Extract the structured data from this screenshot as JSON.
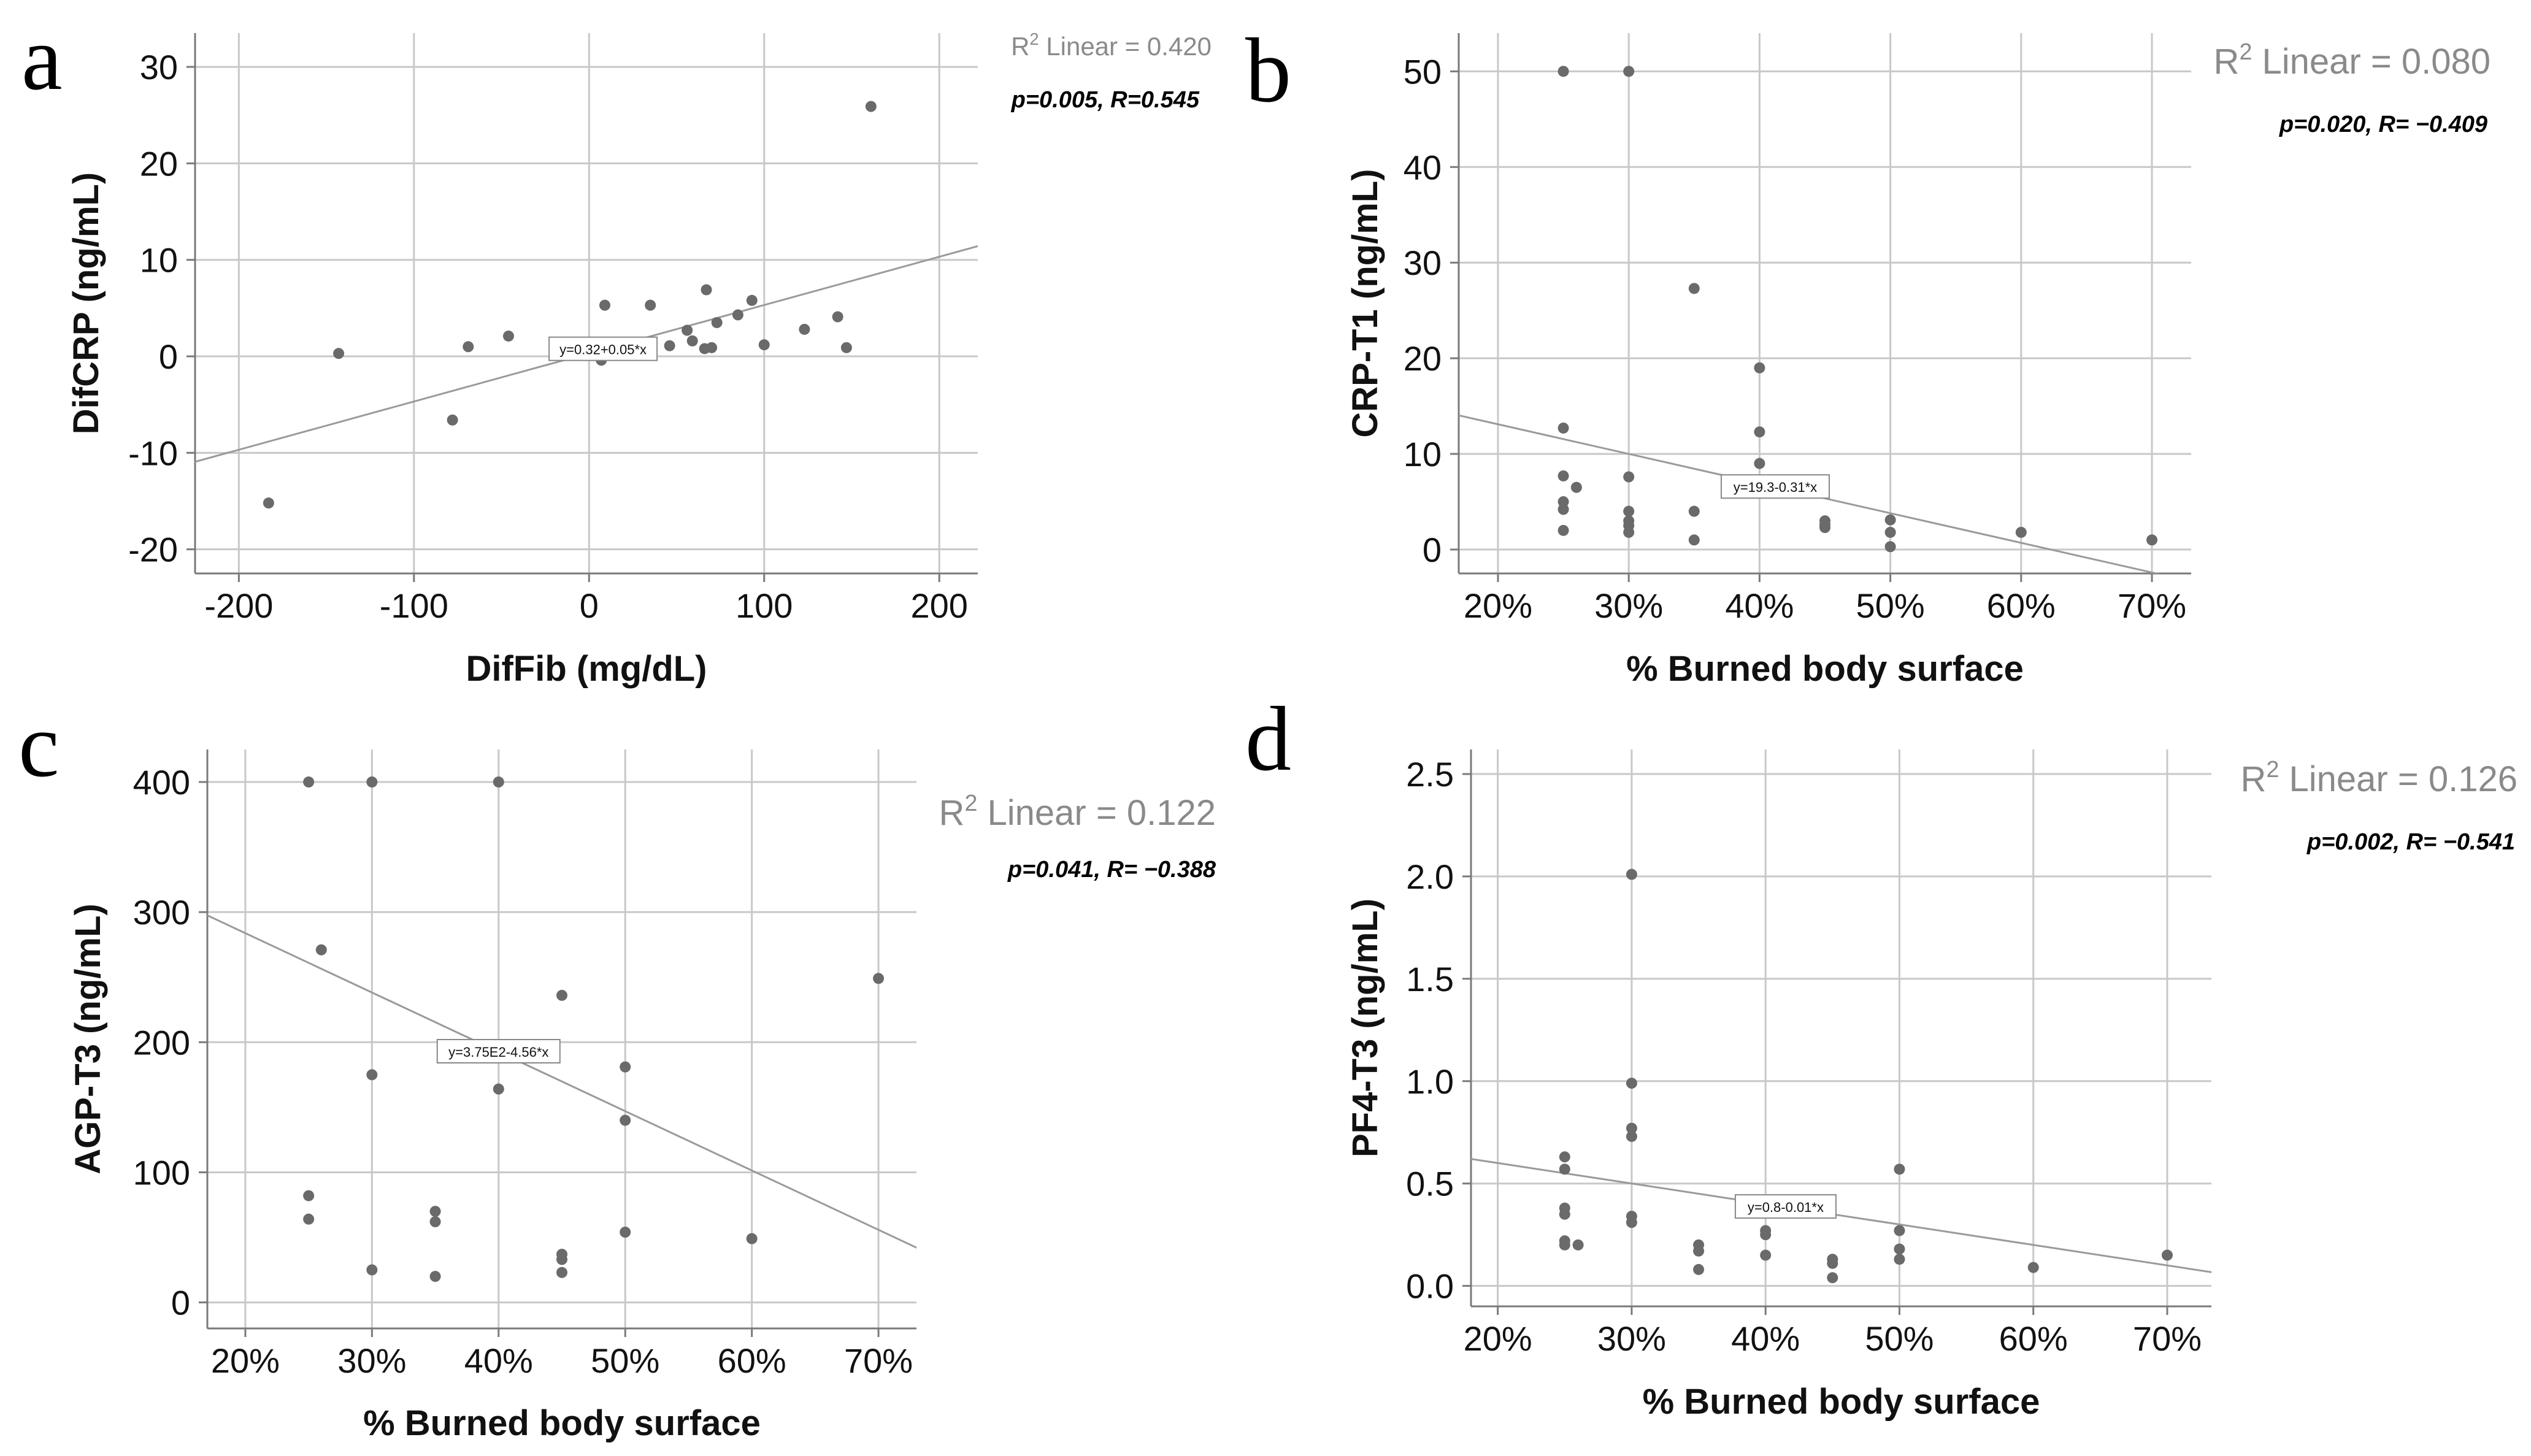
{
  "chart_data": [
    {
      "panel_letter": "a",
      "type": "scatter",
      "xlabel": "DifFib (mg/dL)",
      "ylabel": "DifCRP (ng/mL)",
      "xlim": [
        -225,
        222
      ],
      "ylim": [
        -22.5,
        33.5
      ],
      "x_ticks": [
        -200,
        -100,
        0,
        100,
        200
      ],
      "x_tick_labels": [
        "-200",
        "-100",
        "0",
        "100",
        "200"
      ],
      "y_ticks": [
        -20,
        -10,
        0,
        10,
        20,
        30
      ],
      "y_tick_labels": [
        "-20",
        "-10",
        "0",
        "10",
        "20",
        "30"
      ],
      "grid": true,
      "points": [
        {
          "x": -183,
          "y": -15.2
        },
        {
          "x": -143,
          "y": 0.3
        },
        {
          "x": -78,
          "y": -6.6
        },
        {
          "x": -69,
          "y": 1.0
        },
        {
          "x": -46,
          "y": 2.1
        },
        {
          "x": 7,
          "y": -0.4
        },
        {
          "x": 9,
          "y": 5.3
        },
        {
          "x": 35,
          "y": 5.3
        },
        {
          "x": 46,
          "y": 1.1
        },
        {
          "x": 56,
          "y": 2.7
        },
        {
          "x": 59,
          "y": 1.6
        },
        {
          "x": 67,
          "y": 6.9
        },
        {
          "x": 66,
          "y": 0.8
        },
        {
          "x": 70,
          "y": 0.9
        },
        {
          "x": 73,
          "y": 3.5
        },
        {
          "x": 85,
          "y": 4.3
        },
        {
          "x": 93,
          "y": 5.8
        },
        {
          "x": 100,
          "y": 1.2
        },
        {
          "x": 123,
          "y": 2.8
        },
        {
          "x": 142,
          "y": 4.1
        },
        {
          "x": 147,
          "y": 0.9
        },
        {
          "x": 161,
          "y": 25.9
        }
      ],
      "fit": {
        "intercept": 0.32,
        "slope": 0.05,
        "label": "y=0.32+0.05*x",
        "label_x": 8
      },
      "r2_text": "Linear = 0.420",
      "r2_size": "small",
      "stats_text": "p=0.005, R=0.545"
    },
    {
      "panel_letter": "b",
      "type": "scatter",
      "xlabel": "% Burned body surface",
      "ylabel": "CRP-T1 (ng/mL)",
      "xlim": [
        17,
        73
      ],
      "ylim": [
        -2.5,
        54
      ],
      "x_ticks": [
        20,
        30,
        40,
        50,
        60,
        70
      ],
      "x_tick_labels": [
        "20%",
        "30%",
        "40%",
        "50%",
        "60%",
        "70%"
      ],
      "y_ticks": [
        0,
        10,
        20,
        30,
        40,
        50
      ],
      "y_tick_labels": [
        "0",
        "10",
        "20",
        "30",
        "40",
        "50"
      ],
      "grid": true,
      "points": [
        {
          "x": 25,
          "y": 50
        },
        {
          "x": 30,
          "y": 50
        },
        {
          "x": 25,
          "y": 12.7
        },
        {
          "x": 25,
          "y": 7.7
        },
        {
          "x": 25,
          "y": 5.0
        },
        {
          "x": 25,
          "y": 4.2
        },
        {
          "x": 25,
          "y": 2.0
        },
        {
          "x": 26,
          "y": 6.5
        },
        {
          "x": 30,
          "y": 7.6
        },
        {
          "x": 30,
          "y": 4.0
        },
        {
          "x": 30,
          "y": 3.0
        },
        {
          "x": 30,
          "y": 2.5
        },
        {
          "x": 30,
          "y": 1.8
        },
        {
          "x": 35,
          "y": 27.3
        },
        {
          "x": 35,
          "y": 4.0
        },
        {
          "x": 35,
          "y": 1.0
        },
        {
          "x": 40,
          "y": 19.0
        },
        {
          "x": 40,
          "y": 12.3
        },
        {
          "x": 40,
          "y": 9.0
        },
        {
          "x": 40,
          "y": 6.3
        },
        {
          "x": 45,
          "y": 3.0
        },
        {
          "x": 45,
          "y": 2.6
        },
        {
          "x": 45,
          "y": 2.3
        },
        {
          "x": 50,
          "y": 3.1
        },
        {
          "x": 50,
          "y": 1.8
        },
        {
          "x": 50,
          "y": 0.3
        },
        {
          "x": 60,
          "y": 1.8
        },
        {
          "x": 70,
          "y": 1.0
        }
      ],
      "fit": {
        "intercept": 19.3,
        "slope": -0.31,
        "label": "y=19.3-0.31*x",
        "label_x": 41.2
      },
      "r2_text": "Linear = 0.080",
      "r2_size": "large",
      "stats_text": "p=0.020, R= −0.409"
    },
    {
      "panel_letter": "c",
      "type": "scatter",
      "xlabel": "% Burned body surface",
      "ylabel": "AGP-T3 (ng/mL)",
      "xlim": [
        17,
        73
      ],
      "ylim": [
        -20,
        425
      ],
      "x_ticks": [
        20,
        30,
        40,
        50,
        60,
        70
      ],
      "x_tick_labels": [
        "20%",
        "30%",
        "40%",
        "50%",
        "60%",
        "70%"
      ],
      "y_ticks": [
        0,
        100,
        200,
        300,
        400
      ],
      "y_tick_labels": [
        "0",
        "100",
        "200",
        "300",
        "400"
      ],
      "grid": true,
      "points": [
        {
          "x": 25,
          "y": 400
        },
        {
          "x": 30,
          "y": 400
        },
        {
          "x": 40,
          "y": 400
        },
        {
          "x": 26,
          "y": 271
        },
        {
          "x": 25,
          "y": 82
        },
        {
          "x": 25,
          "y": 64
        },
        {
          "x": 30,
          "y": 175
        },
        {
          "x": 30,
          "y": 25
        },
        {
          "x": 35,
          "y": 70
        },
        {
          "x": 35,
          "y": 62
        },
        {
          "x": 35,
          "y": 20
        },
        {
          "x": 40,
          "y": 164
        },
        {
          "x": 45,
          "y": 236
        },
        {
          "x": 45,
          "y": 37
        },
        {
          "x": 45,
          "y": 33
        },
        {
          "x": 45,
          "y": 23
        },
        {
          "x": 50,
          "y": 181
        },
        {
          "x": 50,
          "y": 140
        },
        {
          "x": 50,
          "y": 54
        },
        {
          "x": 60,
          "y": 49
        },
        {
          "x": 70,
          "y": 249
        }
      ],
      "fit": {
        "intercept": 375,
        "slope": -4.56,
        "label": "y=3.75E2-4.56*x",
        "label_x": 40
      },
      "r2_text": "Linear = 0.122",
      "r2_size": "large",
      "stats_text": "p=0.041, R= −0.388"
    },
    {
      "panel_letter": "d",
      "type": "scatter",
      "xlabel": "% Burned body surface",
      "ylabel": "PF4-T3 (ng/mL)",
      "xlim": [
        18,
        73.3
      ],
      "ylim": [
        -0.1,
        2.62
      ],
      "x_ticks": [
        20,
        30,
        40,
        50,
        60,
        70
      ],
      "x_tick_labels": [
        "20%",
        "30%",
        "40%",
        "50%",
        "60%",
        "70%"
      ],
      "y_ticks": [
        0,
        0.5,
        1.0,
        1.5,
        2.0,
        2.5
      ],
      "y_tick_labels": [
        "0.0",
        "0.5",
        "1.0",
        "1.5",
        "2.0",
        "2.5"
      ],
      "grid": true,
      "points": [
        {
          "x": 25,
          "y": 0.63
        },
        {
          "x": 25,
          "y": 0.57
        },
        {
          "x": 25,
          "y": 0.38
        },
        {
          "x": 25,
          "y": 0.35
        },
        {
          "x": 25,
          "y": 0.22
        },
        {
          "x": 25,
          "y": 0.2
        },
        {
          "x": 26,
          "y": 0.2
        },
        {
          "x": 30,
          "y": 2.01
        },
        {
          "x": 30,
          "y": 0.99
        },
        {
          "x": 30,
          "y": 0.77
        },
        {
          "x": 30,
          "y": 0.73
        },
        {
          "x": 30,
          "y": 0.34
        },
        {
          "x": 30,
          "y": 0.31
        },
        {
          "x": 35,
          "y": 0.2
        },
        {
          "x": 35,
          "y": 0.17
        },
        {
          "x": 35,
          "y": 0.08
        },
        {
          "x": 40,
          "y": 0.27
        },
        {
          "x": 40,
          "y": 0.25
        },
        {
          "x": 40,
          "y": 0.15
        },
        {
          "x": 45,
          "y": 0.13
        },
        {
          "x": 45,
          "y": 0.11
        },
        {
          "x": 45,
          "y": 0.04
        },
        {
          "x": 50,
          "y": 0.57
        },
        {
          "x": 50,
          "y": 0.27
        },
        {
          "x": 50,
          "y": 0.18
        },
        {
          "x": 50,
          "y": 0.13
        },
        {
          "x": 60,
          "y": 0.09
        },
        {
          "x": 70,
          "y": 0.15
        }
      ],
      "fit": {
        "intercept": 0.8,
        "slope": -0.01,
        "label": "y=0.8-0.01*x",
        "label_x": 41.5
      },
      "r2_text": "Linear = 0.126",
      "r2_size": "large",
      "stats_text": "p=0.002, R= −0.541"
    }
  ]
}
